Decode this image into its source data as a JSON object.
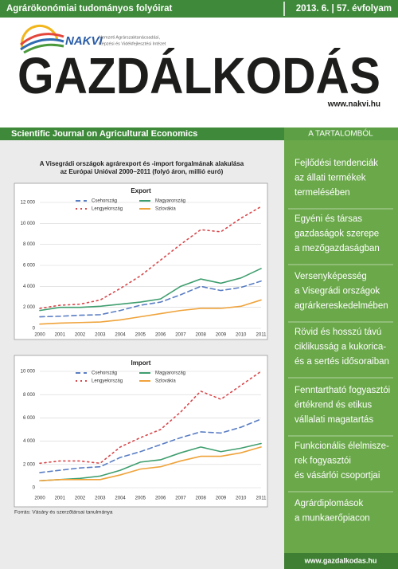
{
  "header": {
    "subtitle": "Agrárökonómiai tudományos folyóirat",
    "issue": "2013. 6. | 57. évfolyam",
    "logo": "NAKVI",
    "institute": [
      "Nemzeti Agrárszaktanácsadási,",
      "Képzési és Vidékfejlesztési Intézet"
    ],
    "title": "GAZDÁLKODÁS",
    "website": "www.nakvi.hu",
    "english_subtitle": "Scientific Journal on Agricultural Economics"
  },
  "figure": {
    "title": [
      "A Visegrádi országok agrárexport és -import forgalmának alakulása",
      "az Európai Unióval 2000–2011 (folyó áron, millió euró)"
    ],
    "source": "Forrás: Vásáry és szerzőtársai tanulmánya"
  },
  "chart_data": [
    {
      "type": "line",
      "title": "Export",
      "categories": [
        "2000",
        "2001",
        "2002",
        "2003",
        "2004",
        "2005",
        "2006",
        "2007",
        "2008",
        "2009",
        "2010",
        "2011"
      ],
      "ylim": [
        0,
        12000
      ],
      "yticks": [
        0,
        {
          "value": 2000,
          "label": "2 000"
        },
        {
          "value": 4000,
          "label": "4 000"
        },
        {
          "value": 6000,
          "label": "6 000"
        },
        {
          "value": 8000,
          "label": "8 000"
        },
        {
          "value": 10000,
          "label": "10 000"
        },
        {
          "value": 12000,
          "label": "12 000"
        }
      ],
      "grid": true,
      "series": [
        {
          "name": "Csehország",
          "color": "#5a7ec4",
          "style": "dashed",
          "values": [
            1100,
            1150,
            1250,
            1300,
            1700,
            2200,
            2500,
            3200,
            4000,
            3600,
            3900,
            4500
          ]
        },
        {
          "name": "Magyarország",
          "color": "#3e9e6e",
          "style": "solid",
          "values": [
            1700,
            2000,
            2000,
            2100,
            2300,
            2500,
            2800,
            4000,
            4700,
            4300,
            4800,
            5700
          ]
        },
        {
          "name": "Lengyelország",
          "color": "#d8474b",
          "style": "dotted",
          "values": [
            1900,
            2200,
            2300,
            2700,
            3800,
            5000,
            6500,
            8000,
            9400,
            9200,
            10500,
            11600
          ]
        },
        {
          "name": "Szlovákia",
          "color": "#efa33b",
          "style": "solid",
          "values": [
            400,
            500,
            550,
            600,
            800,
            1100,
            1400,
            1700,
            1900,
            1900,
            2100,
            2700
          ]
        }
      ]
    },
    {
      "type": "line",
      "title": "Import",
      "categories": [
        "2000",
        "2001",
        "2002",
        "2003",
        "2004",
        "2005",
        "2006",
        "2007",
        "2008",
        "2009",
        "2010",
        "2011"
      ],
      "ylim": [
        0,
        10000
      ],
      "yticks": [
        0,
        {
          "value": 2000,
          "label": "2 000"
        },
        {
          "value": 4000,
          "label": "4 000"
        },
        {
          "value": 6000,
          "label": "6 000"
        },
        {
          "value": 8000,
          "label": "8 000"
        },
        {
          "value": 10000,
          "label": "10 000"
        }
      ],
      "grid": true,
      "series": [
        {
          "name": "Csehország",
          "color": "#5a7ec4",
          "style": "dashed",
          "values": [
            1300,
            1500,
            1700,
            1800,
            2600,
            3100,
            3700,
            4300,
            4800,
            4700,
            5200,
            5900
          ]
        },
        {
          "name": "Magyarország",
          "color": "#3e9e6e",
          "style": "solid",
          "values": [
            600,
            700,
            800,
            1000,
            1500,
            2200,
            2400,
            3000,
            3500,
            3100,
            3400,
            3800
          ]
        },
        {
          "name": "Lengyelország",
          "color": "#d8474b",
          "style": "dotted",
          "values": [
            2100,
            2300,
            2300,
            2100,
            3500,
            4300,
            5000,
            6500,
            8300,
            7600,
            8800,
            10000
          ]
        },
        {
          "name": "Szlovákia",
          "color": "#efa33b",
          "style": "solid",
          "values": [
            600,
            700,
            700,
            700,
            1100,
            1600,
            1800,
            2300,
            2700,
            2700,
            3000,
            3500
          ]
        }
      ]
    }
  ],
  "sidebar": {
    "heading": "A TARTALOMBÓL",
    "items": [
      [
        "Fejlődési tendenciák",
        "az állati termékek",
        "termelésében"
      ],
      [
        "Egyéni és társas",
        "gazdaságok szerepe",
        "a mezőgazdaságban"
      ],
      [
        "Versenyképesség",
        "a Visegrádi országok",
        "agrárkereskedelmében"
      ],
      [
        "Rövid és hosszú távú",
        "ciklikusság a kukorica-",
        "és a sertés idősoraiban"
      ],
      [
        "Fenntartható fogyasztói",
        "értékrend és etikus",
        "vállalati magatartás"
      ],
      [
        "Funkcionális élelmisze-",
        "rek fogyasztói",
        "és vásárlói csoportjai"
      ],
      [
        "Agrárdiplomások",
        "a munkaerőpiacon"
      ]
    ],
    "footer": "www.gazdalkodas.hu"
  }
}
